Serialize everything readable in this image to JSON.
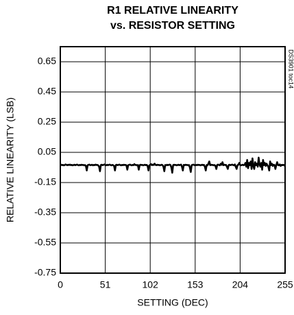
{
  "chart_data": {
    "type": "line",
    "title": "R1 RELATIVE LINEARITY",
    "subtitle": "vs. RESISTOR SETTING",
    "xlabel": "SETTING (DEC)",
    "ylabel": "RELATIVE LINEARITY (LSB)",
    "side_note": "DS3901 toc14",
    "color": "#000000",
    "grid": true,
    "xlim": [
      0,
      255
    ],
    "ylim": [
      -0.75,
      0.75
    ],
    "xticks": [
      0,
      51,
      102,
      153,
      204,
      255
    ],
    "yticks": [
      -0.75,
      -0.55,
      -0.35,
      -0.15,
      0.05,
      0.25,
      0.45,
      0.65
    ],
    "x": [
      0,
      1,
      2,
      3,
      4,
      5,
      6,
      7,
      8,
      9,
      10,
      11,
      12,
      13,
      14,
      15,
      16,
      17,
      18,
      19,
      20,
      21,
      22,
      23,
      24,
      25,
      26,
      27,
      28,
      29,
      30,
      31,
      32,
      33,
      34,
      35,
      36,
      37,
      38,
      39,
      40,
      41,
      42,
      43,
      44,
      45,
      46,
      47,
      48,
      49,
      50,
      51,
      52,
      53,
      54,
      55,
      56,
      57,
      58,
      59,
      60,
      61,
      62,
      63,
      64,
      65,
      66,
      67,
      68,
      69,
      70,
      71,
      72,
      73,
      74,
      75,
      76,
      77,
      78,
      79,
      80,
      81,
      82,
      83,
      84,
      85,
      86,
      87,
      88,
      89,
      90,
      91,
      92,
      93,
      94,
      95,
      96,
      97,
      98,
      99,
      100,
      101,
      102,
      103,
      104,
      105,
      106,
      107,
      108,
      109,
      110,
      111,
      112,
      113,
      114,
      115,
      116,
      117,
      118,
      119,
      120,
      121,
      122,
      123,
      124,
      125,
      126,
      127,
      128,
      129,
      130,
      131,
      132,
      133,
      134,
      135,
      136,
      137,
      138,
      139,
      140,
      141,
      142,
      143,
      144,
      145,
      146,
      147,
      148,
      149,
      150,
      151,
      152,
      153,
      154,
      155,
      156,
      157,
      158,
      159,
      160,
      161,
      162,
      163,
      164,
      165,
      166,
      167,
      168,
      169,
      170,
      171,
      172,
      173,
      174,
      175,
      176,
      177,
      178,
      179,
      180,
      181,
      182,
      183,
      184,
      185,
      186,
      187,
      188,
      189,
      190,
      191,
      192,
      193,
      194,
      195,
      196,
      197,
      198,
      199,
      200,
      201,
      202,
      203,
      204,
      205,
      206,
      207,
      208,
      209,
      210,
      211,
      212,
      213,
      214,
      215,
      216,
      217,
      218,
      219,
      220,
      221,
      222,
      223,
      224,
      225,
      226,
      227,
      228,
      229,
      230,
      231,
      232,
      233,
      234,
      235,
      236,
      237,
      238,
      239,
      240,
      241,
      242,
      243,
      244,
      245,
      246,
      247,
      248,
      249,
      250,
      251,
      252,
      253,
      254,
      255
    ],
    "values": [
      -0.03,
      -0.032,
      -0.035,
      -0.033,
      -0.036,
      -0.034,
      -0.03,
      -0.033,
      -0.035,
      -0.032,
      -0.034,
      -0.031,
      -0.035,
      -0.033,
      -0.036,
      -0.034,
      -0.032,
      -0.035,
      -0.033,
      -0.031,
      -0.034,
      -0.036,
      -0.033,
      -0.035,
      -0.032,
      -0.034,
      -0.033,
      -0.036,
      -0.034,
      -0.04,
      -0.07,
      -0.035,
      -0.033,
      -0.031,
      -0.035,
      -0.034,
      -0.032,
      -0.036,
      -0.033,
      -0.035,
      -0.031,
      -0.034,
      -0.033,
      -0.036,
      -0.045,
      -0.075,
      -0.034,
      -0.032,
      -0.035,
      -0.033,
      -0.03,
      -0.034,
      -0.036,
      -0.032,
      -0.035,
      -0.033,
      -0.031,
      -0.034,
      -0.036,
      -0.033,
      -0.035,
      -0.04,
      -0.07,
      -0.034,
      -0.032,
      -0.035,
      -0.033,
      -0.031,
      -0.034,
      -0.036,
      -0.033,
      -0.035,
      -0.032,
      -0.034,
      -0.033,
      -0.036,
      -0.065,
      -0.035,
      -0.033,
      -0.031,
      -0.034,
      -0.036,
      -0.033,
      -0.035,
      -0.028,
      -0.034,
      -0.033,
      -0.036,
      -0.034,
      -0.065,
      -0.035,
      -0.032,
      -0.034,
      -0.033,
      -0.036,
      -0.034,
      -0.032,
      -0.035,
      -0.033,
      -0.04,
      -0.07,
      -0.036,
      -0.033,
      -0.028,
      -0.035,
      -0.031,
      -0.034,
      -0.025,
      -0.033,
      -0.035,
      -0.032,
      -0.034,
      -0.033,
      -0.036,
      -0.034,
      -0.032,
      -0.035,
      -0.045,
      -0.075,
      -0.034,
      -0.036,
      -0.032,
      -0.035,
      -0.033,
      -0.031,
      -0.034,
      -0.05,
      -0.085,
      -0.035,
      -0.032,
      -0.034,
      -0.033,
      -0.036,
      -0.034,
      -0.032,
      -0.035,
      -0.033,
      -0.031,
      -0.045,
      -0.07,
      -0.033,
      -0.035,
      -0.032,
      -0.034,
      -0.033,
      -0.036,
      -0.034,
      -0.05,
      -0.08,
      -0.035,
      -0.033,
      -0.031,
      -0.034,
      -0.036,
      -0.033,
      -0.035,
      -0.032,
      -0.034,
      -0.033,
      -0.036,
      -0.034,
      -0.032,
      -0.035,
      -0.033,
      -0.045,
      -0.07,
      -0.034,
      -0.036,
      -0.025,
      -0.01,
      -0.035,
      -0.032,
      -0.034,
      -0.033,
      -0.036,
      -0.034,
      -0.04,
      -0.06,
      -0.033,
      -0.031,
      -0.034,
      -0.036,
      -0.025,
      -0.033,
      -0.015,
      -0.035,
      -0.032,
      -0.034,
      -0.033,
      -0.045,
      -0.06,
      -0.034,
      -0.032,
      -0.035,
      -0.033,
      -0.031,
      -0.034,
      -0.036,
      -0.03,
      -0.045,
      -0.06,
      -0.035,
      -0.032,
      -0.02,
      -0.033,
      -0.036,
      -0.034,
      -0.032,
      -0.035,
      -0.033,
      -0.02,
      -0.045,
      0.0,
      -0.055,
      -0.02,
      -0.035,
      -0.01,
      -0.06,
      0.01,
      -0.04,
      -0.06,
      -0.015,
      -0.035,
      -0.025,
      -0.045,
      0.015,
      -0.03,
      -0.045,
      -0.02,
      -0.065,
      0.0,
      -0.035,
      -0.02,
      -0.04,
      -0.025,
      -0.036,
      -0.045,
      -0.07,
      -0.01,
      -0.035,
      -0.025,
      -0.04,
      -0.032,
      -0.034,
      -0.06,
      -0.035,
      -0.015,
      -0.034,
      -0.036,
      -0.03,
      -0.04,
      -0.033,
      -0.035,
      -0.032,
      -0.036,
      -0.04
    ]
  }
}
